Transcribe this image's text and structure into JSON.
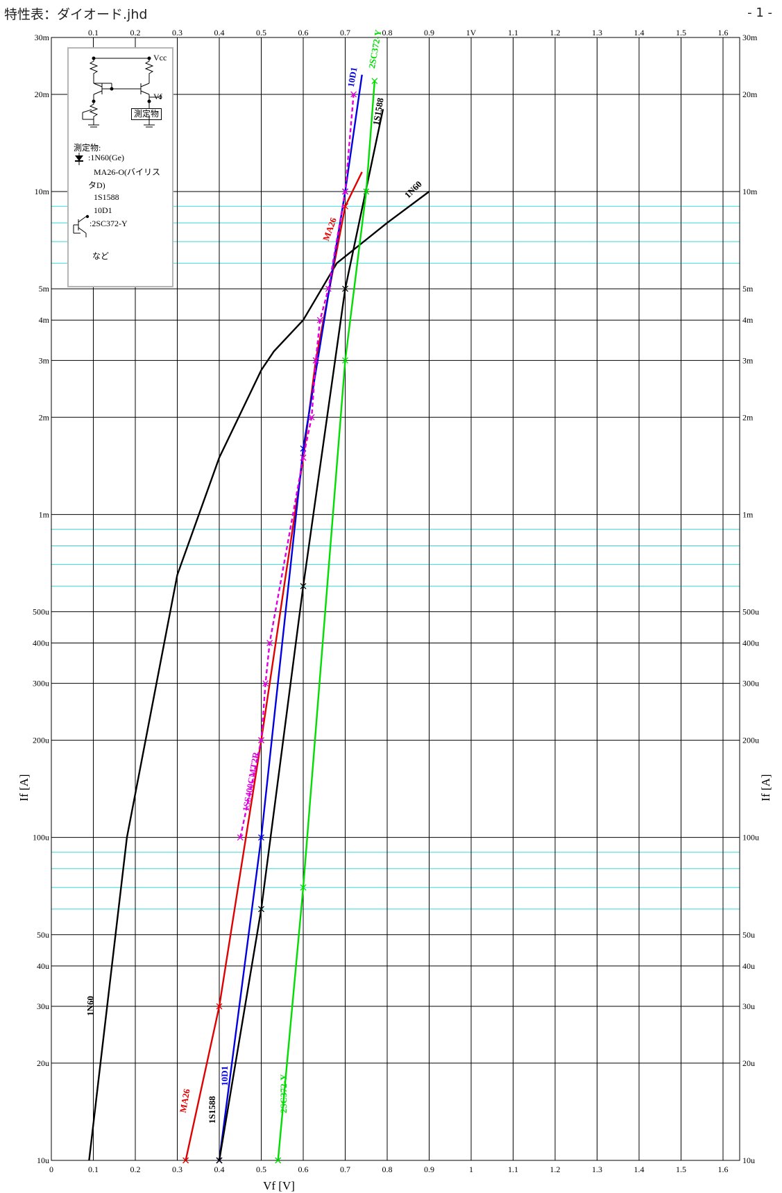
{
  "header": {
    "title": "特性表：ダイオード.jhd",
    "page": "- 1 -"
  },
  "inset": {
    "vcc": "Vcc",
    "vf": "Vf",
    "dut_box": "測定物",
    "dut_heading": "測定物:",
    "items": [
      ":1N60(Ge)",
      "MA26-O(バイリス",
      "タD)",
      "1S1588",
      "10D1",
      ":2SC372-Y"
    ],
    "etc": "など",
    "diode_icon": "diode-symbol",
    "transistor_icon": "transistor-symbol"
  },
  "chart_data": {
    "type": "line",
    "title": "",
    "xlabel": "Vf [V]",
    "ylabel": "If [A]",
    "xlim": [
      0,
      1.7
    ],
    "ylim": [
      1e-05,
      0.03
    ],
    "yscale": "log",
    "x_ticks_top": [
      "0.1",
      "0.2",
      "0.3",
      "0.4",
      "0.5",
      "0.6",
      "0.7",
      "0.8",
      "0.9",
      "1V",
      "1.1",
      "1.2",
      "1.3",
      "1.4",
      "1.5",
      "1.6"
    ],
    "x_ticks_bottom": [
      "0",
      "0.1",
      "0.2",
      "0.3",
      "0.4",
      "0.5",
      "0.6",
      "0.7",
      "0.8",
      "0.9",
      "1",
      "1.1",
      "1.2",
      "1.3",
      "1.4",
      "1.5",
      "1.6"
    ],
    "y_ticks": [
      {
        "v": 0.03,
        "label": "30m"
      },
      {
        "v": 0.02,
        "label": "20m"
      },
      {
        "v": 0.01,
        "label": "10m"
      },
      {
        "v": 0.005,
        "label": "5m"
      },
      {
        "v": 0.004,
        "label": "4m"
      },
      {
        "v": 0.003,
        "label": "3m"
      },
      {
        "v": 0.002,
        "label": "2m"
      },
      {
        "v": 0.001,
        "label": "1m"
      },
      {
        "v": 0.0005,
        "label": "500u"
      },
      {
        "v": 0.0004,
        "label": "400u"
      },
      {
        "v": 0.0003,
        "label": "300u"
      },
      {
        "v": 0.0002,
        "label": "200u"
      },
      {
        "v": 0.0001,
        "label": "100u"
      },
      {
        "v": 5e-05,
        "label": "50u"
      },
      {
        "v": 4e-05,
        "label": "40u"
      },
      {
        "v": 3e-05,
        "label": "30u"
      },
      {
        "v": 2e-05,
        "label": "20u"
      },
      {
        "v": 1e-05,
        "label": "10u"
      }
    ],
    "grid": true,
    "series": [
      {
        "name": "1N60",
        "color": "#000000",
        "dashed": false,
        "x": [
          0.09,
          0.18,
          0.3,
          0.4,
          0.5,
          0.53,
          0.6,
          0.68,
          0.8,
          0.9
        ],
        "y": [
          1e-05,
          0.0001,
          0.00065,
          0.0015,
          0.0028,
          0.0032,
          0.004,
          0.006,
          0.008,
          0.01
        ],
        "markers": []
      },
      {
        "name": "MA26",
        "color": "#e00000",
        "dashed": false,
        "x": [
          0.32,
          0.4,
          0.5,
          0.6,
          0.63,
          0.7,
          0.74
        ],
        "y": [
          1e-05,
          3e-05,
          0.0002,
          0.0015,
          0.003,
          0.009,
          0.0115
        ],
        "markers": [
          [
            0.32,
            1e-05
          ],
          [
            0.4,
            3e-05
          ],
          [
            0.5,
            0.0002
          ],
          [
            0.6,
            0.0015
          ],
          [
            0.63,
            0.003
          ],
          [
            0.7,
            0.009
          ]
        ]
      },
      {
        "name": "10D1",
        "color": "#0000e0",
        "dashed": false,
        "x": [
          0.4,
          0.5,
          0.6,
          0.7,
          0.74
        ],
        "y": [
          1e-05,
          0.0001,
          0.0016,
          0.01,
          0.023
        ],
        "markers": [
          [
            0.4,
            1e-05
          ],
          [
            0.5,
            0.0001
          ],
          [
            0.6,
            0.0016
          ],
          [
            0.7,
            0.01
          ]
        ]
      },
      {
        "name": "1S1588",
        "color": "#000000",
        "dashed": false,
        "x": [
          0.4,
          0.5,
          0.6,
          0.7,
          0.79
        ],
        "y": [
          1e-05,
          6e-05,
          0.0006,
          0.005,
          0.018
        ],
        "markers": [
          [
            0.4,
            1e-05
          ],
          [
            0.5,
            6e-05
          ],
          [
            0.6,
            0.0006
          ],
          [
            0.7,
            0.005
          ]
        ]
      },
      {
        "name": "2SC372-Y",
        "color": "#00dd00",
        "dashed": false,
        "x": [
          0.54,
          0.6,
          0.7,
          0.75,
          0.77
        ],
        "y": [
          1e-05,
          7e-05,
          0.003,
          0.01,
          0.022
        ],
        "markers": [
          [
            0.54,
            1e-05
          ],
          [
            0.6,
            7e-05
          ],
          [
            0.7,
            0.003
          ],
          [
            0.75,
            0.01
          ],
          [
            0.77,
            0.022
          ]
        ]
      },
      {
        "name": "1SS400CMT2R",
        "color": "#dd00dd",
        "dashed": true,
        "x": [
          0.45,
          0.5,
          0.51,
          0.52,
          0.6,
          0.62,
          0.63,
          0.64,
          0.66,
          0.7,
          0.72
        ],
        "y": [
          0.0001,
          0.0002,
          0.0003,
          0.0004,
          0.0015,
          0.002,
          0.003,
          0.004,
          0.005,
          0.01,
          0.02
        ],
        "markers": [
          [
            0.45,
            0.0001
          ],
          [
            0.5,
            0.0002
          ],
          [
            0.51,
            0.0003
          ],
          [
            0.52,
            0.0004
          ],
          [
            0.6,
            0.0015
          ],
          [
            0.62,
            0.002
          ],
          [
            0.63,
            0.003
          ],
          [
            0.64,
            0.004
          ],
          [
            0.66,
            0.005
          ],
          [
            0.7,
            0.01
          ],
          [
            0.72,
            0.02
          ]
        ]
      }
    ],
    "curve_labels": [
      {
        "text": "1N60",
        "color": "#000000",
        "x": 0.85,
        "y": 0.0095,
        "rot": -45
      },
      {
        "text": "MA26",
        "color": "#e00000",
        "x": 0.66,
        "y": 0.007,
        "rot": -70
      },
      {
        "text": "10D1",
        "color": "#0000e0",
        "x": 0.72,
        "y": 0.021,
        "rot": -80
      },
      {
        "text": "1S1588",
        "color": "#000000",
        "x": 0.78,
        "y": 0.016,
        "rot": -80
      },
      {
        "text": "2SC372-Y",
        "color": "#00dd00",
        "x": 0.77,
        "y": 0.024,
        "rot": -80
      },
      {
        "text": "1N60",
        "color": "#000000",
        "x": 0.1,
        "y": 2.8e-05,
        "rot": -90
      },
      {
        "text": "MA26",
        "color": "#e00000",
        "x": 0.32,
        "y": 1.4e-05,
        "rot": -80
      },
      {
        "text": "10D1",
        "color": "#0000e0",
        "x": 0.42,
        "y": 1.7e-05,
        "rot": -90
      },
      {
        "text": "1S1588",
        "color": "#000000",
        "x": 0.39,
        "y": 1.3e-05,
        "rot": -90
      },
      {
        "text": "2SC372-Y",
        "color": "#00dd00",
        "x": 0.56,
        "y": 1.4e-05,
        "rot": -90
      },
      {
        "text": "1SS400CMT2R",
        "color": "#dd00dd",
        "x": 0.47,
        "y": 0.00012,
        "rot": -80
      }
    ]
  }
}
